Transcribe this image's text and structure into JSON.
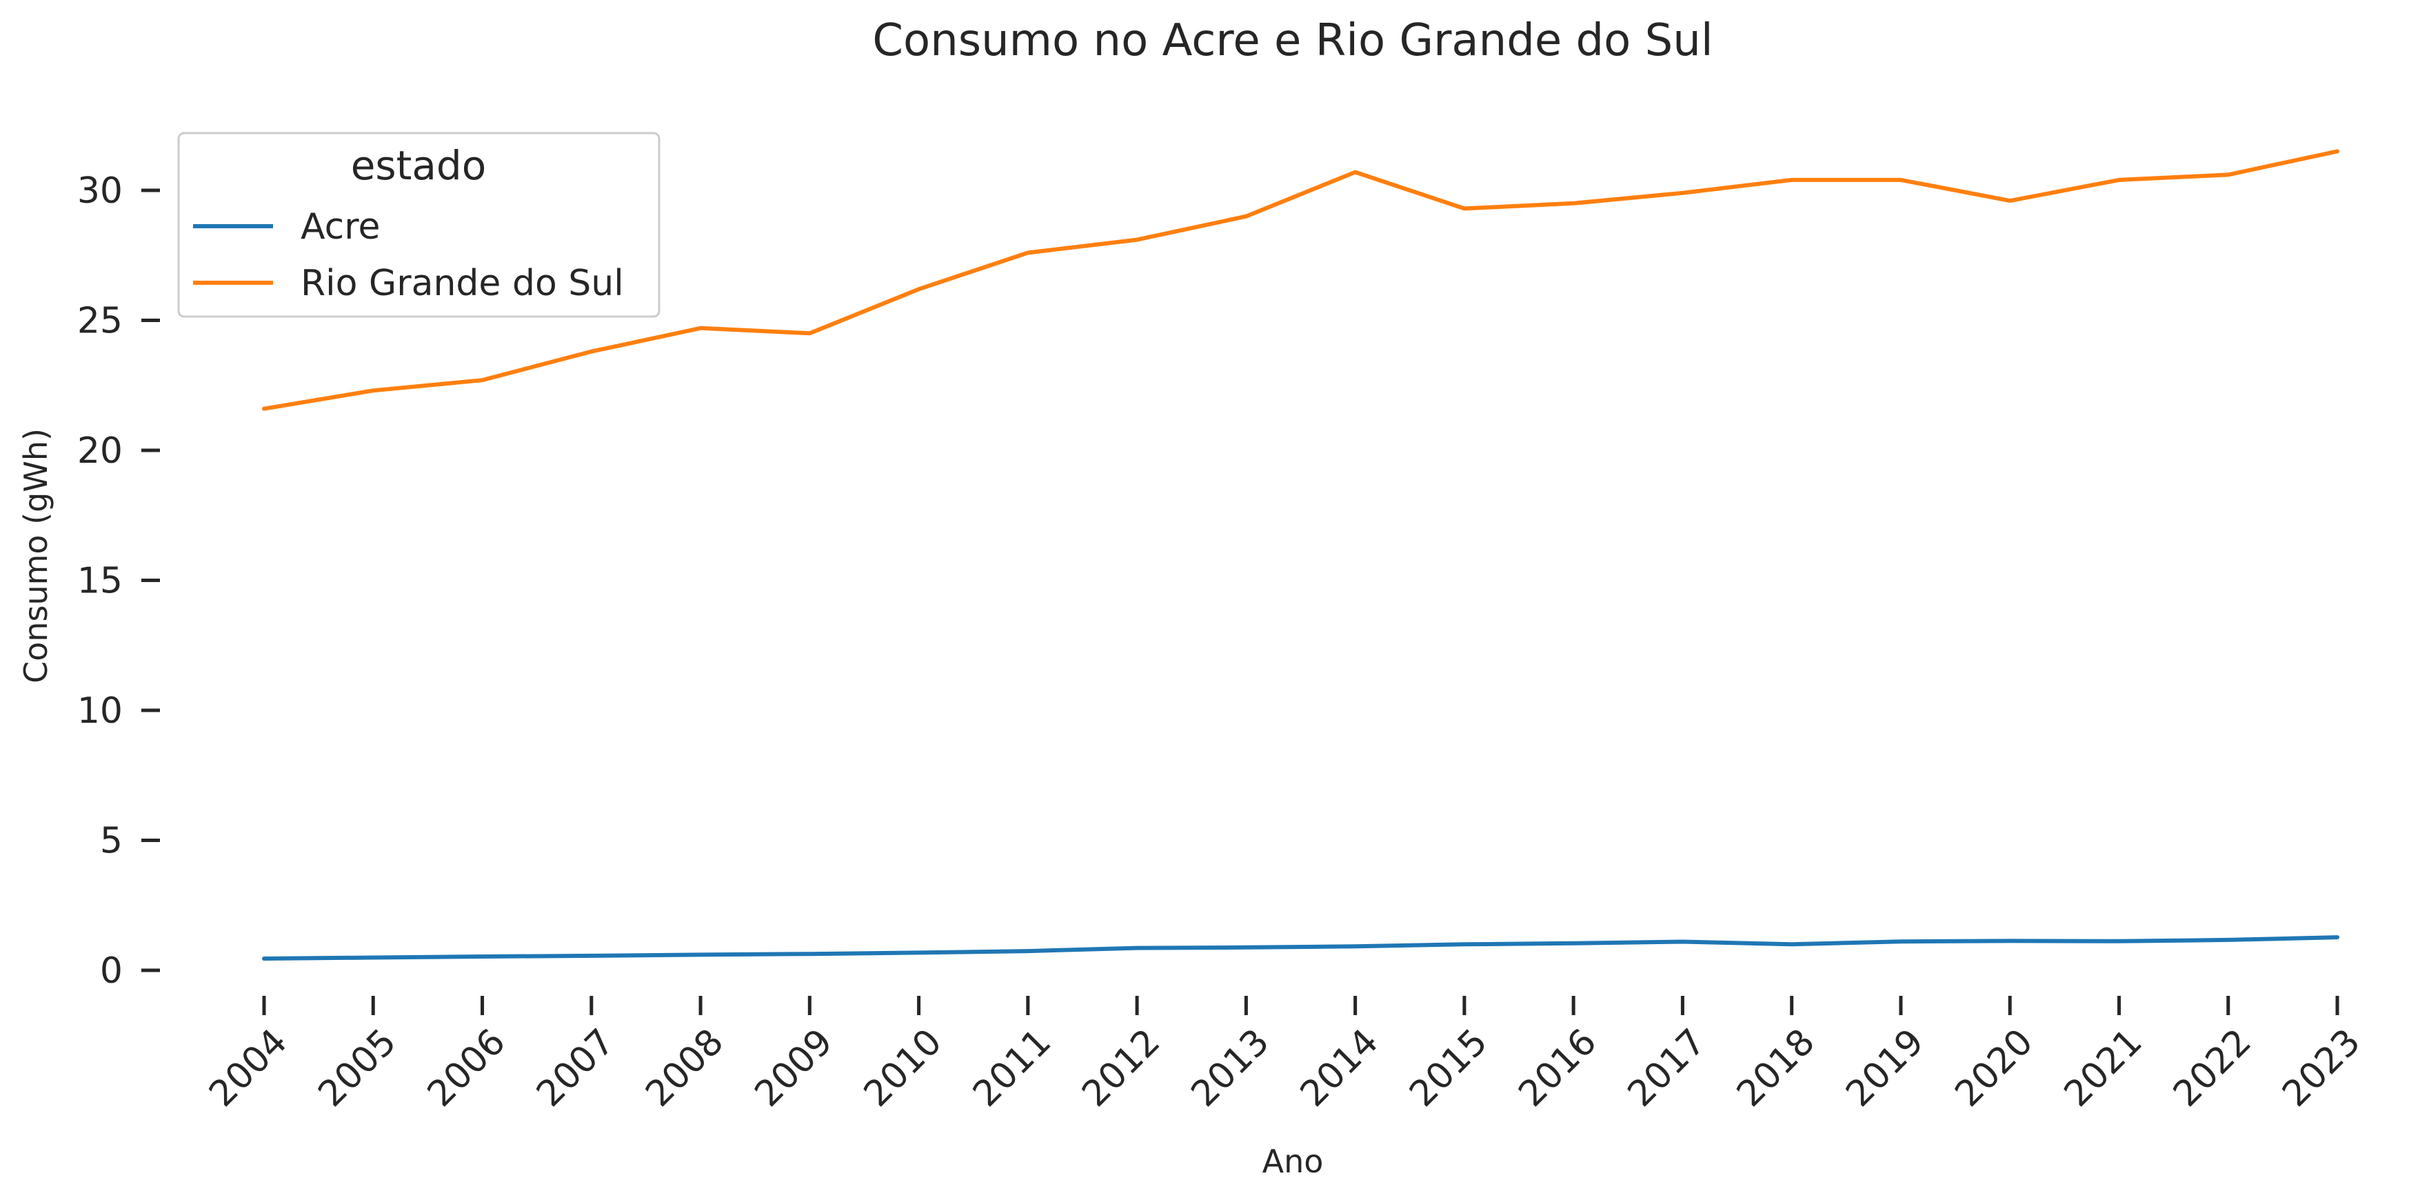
{
  "chart_data": {
    "type": "line",
    "title": "Consumo no Acre e Rio Grande do Sul",
    "xlabel": "Ano",
    "ylabel": "Consumo (gWh)",
    "x": [
      "2004",
      "2005",
      "2006",
      "2007",
      "2008",
      "2009",
      "2010",
      "2011",
      "2012",
      "2013",
      "2014",
      "2015",
      "2016",
      "2017",
      "2018",
      "2019",
      "2020",
      "2021",
      "2022",
      "2023"
    ],
    "ylim": [
      -0.8,
      32.6
    ],
    "yticks": [
      0,
      5,
      10,
      15,
      20,
      25,
      30
    ],
    "legend": {
      "title": "estado",
      "placement": "upper-left"
    },
    "grid": false,
    "series": [
      {
        "name": "Acre",
        "color": "#1f77b4",
        "values": [
          0.45,
          0.49,
          0.53,
          0.56,
          0.6,
          0.63,
          0.68,
          0.74,
          0.86,
          0.88,
          0.92,
          1.0,
          1.04,
          1.1,
          1.0,
          1.11,
          1.13,
          1.12,
          1.17,
          1.27
        ]
      },
      {
        "name": "Rio Grande do Sul",
        "color": "#ff7f0e",
        "values": [
          21.6,
          22.3,
          22.7,
          23.8,
          24.7,
          24.5,
          26.2,
          27.6,
          28.1,
          29.0,
          30.7,
          29.3,
          29.5,
          29.9,
          30.4,
          30.4,
          29.6,
          30.4,
          30.6,
          31.5
        ]
      }
    ]
  }
}
